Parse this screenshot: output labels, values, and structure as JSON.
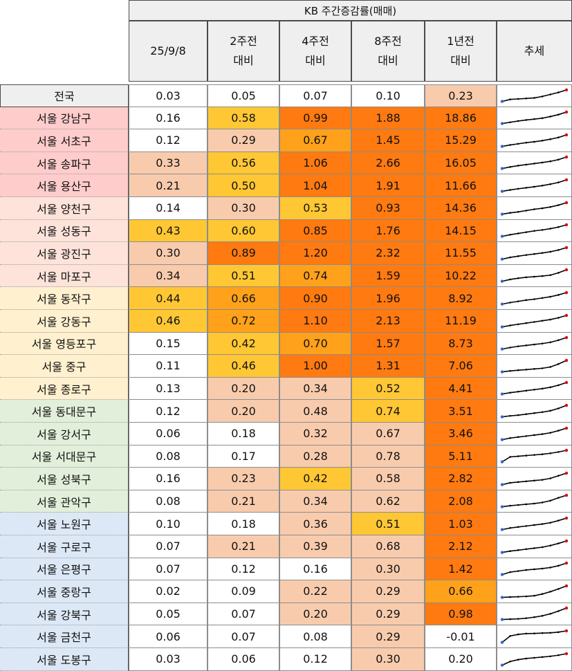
{
  "header": {
    "title": "KB 주간증감률(매매)",
    "columns": [
      {
        "line1": "25/9/8",
        "line2": ""
      },
      {
        "line1": "2주전",
        "line2": "대비"
      },
      {
        "line1": "4주전",
        "line2": "대비"
      },
      {
        "line1": "8주전",
        "line2": "대비"
      },
      {
        "line1": "1년전",
        "line2": "대비"
      },
      {
        "line1": "추세",
        "line2": ""
      }
    ]
  },
  "colors": {
    "heat_white": "#ffffff",
    "heat_light": "#f8cbad",
    "heat_yellow": "#ffc734",
    "heat_orange_light": "#ffa11a",
    "heat_orange": "#ff7a10",
    "group_national": "#efefef",
    "group_red": "#ffcccc",
    "group_peach": "#fde3da",
    "group_cream": "#fff1cf",
    "group_green": "#e2efda",
    "group_blue": "#dce8f6",
    "sparkline": "#000000",
    "spark_start": "#3366cc",
    "spark_end": "#e60000"
  },
  "rows": [
    {
      "region": "전국",
      "group": "national",
      "values": [
        "0.03",
        "0.05",
        "0.07",
        "0.10",
        "0.23"
      ],
      "heat": [
        "white",
        "white",
        "white",
        "white",
        "light"
      ],
      "trend": [
        0.0,
        0.04,
        0.05,
        0.06,
        0.07,
        0.1,
        0.14,
        0.18,
        0.23
      ]
    },
    {
      "region": "서울 강남구",
      "group": "red",
      "values": [
        "0.16",
        "0.58",
        "0.99",
        "1.88",
        "18.86"
      ],
      "heat": [
        "white",
        "yellow",
        "orange",
        "orange",
        "orange"
      ],
      "trend": [
        0.0,
        0.1,
        0.2,
        0.28,
        0.35,
        0.42,
        0.55,
        0.7,
        0.9
      ]
    },
    {
      "region": "서울 서초구",
      "group": "red",
      "values": [
        "0.12",
        "0.29",
        "0.67",
        "1.45",
        "15.29"
      ],
      "heat": [
        "white",
        "light",
        "orange_light",
        "orange",
        "orange"
      ],
      "trend": [
        0.0,
        0.1,
        0.18,
        0.26,
        0.32,
        0.4,
        0.5,
        0.62,
        0.8
      ]
    },
    {
      "region": "서울 송파구",
      "group": "red",
      "values": [
        "0.33",
        "0.56",
        "1.06",
        "2.66",
        "16.05"
      ],
      "heat": [
        "light",
        "yellow",
        "orange",
        "orange",
        "orange"
      ],
      "trend": [
        0.0,
        0.12,
        0.22,
        0.3,
        0.38,
        0.46,
        0.55,
        0.68,
        0.88
      ]
    },
    {
      "region": "서울 용산구",
      "group": "red",
      "values": [
        "0.21",
        "0.50",
        "1.04",
        "1.91",
        "11.66"
      ],
      "heat": [
        "light",
        "yellow",
        "orange",
        "orange",
        "orange"
      ],
      "trend": [
        0.0,
        0.1,
        0.18,
        0.25,
        0.32,
        0.4,
        0.5,
        0.62,
        0.8
      ]
    },
    {
      "region": "서울 양천구",
      "group": "peach",
      "values": [
        "0.14",
        "0.30",
        "0.53",
        "0.93",
        "14.36"
      ],
      "heat": [
        "white",
        "light",
        "yellow",
        "orange",
        "orange"
      ],
      "trend": [
        0.0,
        0.08,
        0.14,
        0.22,
        0.3,
        0.36,
        0.44,
        0.55,
        0.7
      ]
    },
    {
      "region": "서울 성동구",
      "group": "peach",
      "values": [
        "0.43",
        "0.60",
        "0.85",
        "1.76",
        "14.15"
      ],
      "heat": [
        "yellow",
        "yellow",
        "orange",
        "orange",
        "orange"
      ],
      "trend": [
        0.0,
        0.1,
        0.18,
        0.26,
        0.34,
        0.4,
        0.48,
        0.58,
        0.72
      ]
    },
    {
      "region": "서울 광진구",
      "group": "peach",
      "values": [
        "0.30",
        "0.89",
        "1.20",
        "2.32",
        "11.55"
      ],
      "heat": [
        "light",
        "orange",
        "orange",
        "orange",
        "orange"
      ],
      "trend": [
        0.0,
        0.12,
        0.2,
        0.28,
        0.35,
        0.42,
        0.5,
        0.62,
        0.78
      ]
    },
    {
      "region": "서울 마포구",
      "group": "peach",
      "values": [
        "0.34",
        "0.51",
        "0.74",
        "1.59",
        "10.22"
      ],
      "heat": [
        "light",
        "yellow",
        "orange_light",
        "orange",
        "orange"
      ],
      "trend": [
        0.0,
        0.12,
        0.2,
        0.26,
        0.3,
        0.34,
        0.4,
        0.55,
        0.75
      ]
    },
    {
      "region": "서울 동작구",
      "group": "cream",
      "values": [
        "0.44",
        "0.66",
        "0.90",
        "1.96",
        "8.92"
      ],
      "heat": [
        "yellow",
        "orange_light",
        "orange",
        "orange",
        "orange"
      ],
      "trend": [
        0.0,
        0.1,
        0.18,
        0.26,
        0.32,
        0.4,
        0.48,
        0.6,
        0.75
      ]
    },
    {
      "region": "서울 강동구",
      "group": "cream",
      "values": [
        "0.46",
        "0.72",
        "1.10",
        "2.13",
        "11.19"
      ],
      "heat": [
        "yellow",
        "orange_light",
        "orange",
        "orange",
        "orange"
      ],
      "trend": [
        0.0,
        0.1,
        0.18,
        0.26,
        0.34,
        0.42,
        0.5,
        0.62,
        0.78
      ]
    },
    {
      "region": "서울 영등포구",
      "group": "cream",
      "values": [
        "0.15",
        "0.42",
        "0.70",
        "1.57",
        "8.73"
      ],
      "heat": [
        "white",
        "yellow",
        "orange_light",
        "orange",
        "orange"
      ],
      "trend": [
        0.0,
        0.1,
        0.18,
        0.24,
        0.3,
        0.36,
        0.44,
        0.58,
        0.75
      ]
    },
    {
      "region": "서울 중구",
      "group": "cream",
      "values": [
        "0.11",
        "0.46",
        "1.00",
        "1.31",
        "7.06"
      ],
      "heat": [
        "white",
        "yellow",
        "orange",
        "orange",
        "orange"
      ],
      "trend": [
        0.0,
        0.06,
        0.1,
        0.14,
        0.18,
        0.22,
        0.3,
        0.48,
        0.7
      ]
    },
    {
      "region": "서울 종로구",
      "group": "cream",
      "values": [
        "0.13",
        "0.20",
        "0.34",
        "0.52",
        "4.41"
      ],
      "heat": [
        "white",
        "light",
        "light",
        "yellow",
        "orange"
      ],
      "trend": [
        0.0,
        0.08,
        0.14,
        0.2,
        0.26,
        0.32,
        0.4,
        0.52,
        0.68
      ]
    },
    {
      "region": "서울 동대문구",
      "group": "green",
      "values": [
        "0.12",
        "0.20",
        "0.48",
        "0.74",
        "3.51"
      ],
      "heat": [
        "white",
        "light",
        "light",
        "yellow",
        "orange"
      ],
      "trend": [
        0.0,
        0.06,
        0.1,
        0.16,
        0.22,
        0.28,
        0.36,
        0.5,
        0.68
      ]
    },
    {
      "region": "서울 강서구",
      "group": "green",
      "values": [
        "0.06",
        "0.18",
        "0.32",
        "0.67",
        "3.46"
      ],
      "heat": [
        "white",
        "white",
        "light",
        "light",
        "orange"
      ],
      "trend": [
        0.0,
        0.1,
        0.16,
        0.22,
        0.28,
        0.34,
        0.42,
        0.55,
        0.7
      ]
    },
    {
      "region": "서울 서대문구",
      "group": "green",
      "values": [
        "0.08",
        "0.17",
        "0.28",
        "0.78",
        "5.11"
      ],
      "heat": [
        "white",
        "white",
        "light",
        "light",
        "orange"
      ],
      "trend": [
        0.0,
        0.3,
        0.34,
        0.38,
        0.42,
        0.46,
        0.52,
        0.6,
        0.7
      ]
    },
    {
      "region": "서울 성북구",
      "group": "green",
      "values": [
        "0.16",
        "0.23",
        "0.42",
        "0.58",
        "2.82"
      ],
      "heat": [
        "white",
        "light",
        "yellow",
        "light",
        "orange"
      ],
      "trend": [
        0.0,
        0.1,
        0.14,
        0.18,
        0.22,
        0.26,
        0.34,
        0.48,
        0.62
      ]
    },
    {
      "region": "서울 관악구",
      "group": "green",
      "values": [
        "0.08",
        "0.21",
        "0.34",
        "0.62",
        "2.08"
      ],
      "heat": [
        "white",
        "light",
        "light",
        "light",
        "orange"
      ],
      "trend": [
        0.0,
        0.06,
        0.1,
        0.14,
        0.18,
        0.24,
        0.34,
        0.5,
        0.64
      ]
    },
    {
      "region": "서울 노원구",
      "group": "blue",
      "values": [
        "0.10",
        "0.18",
        "0.36",
        "0.51",
        "1.03"
      ],
      "heat": [
        "white",
        "white",
        "light",
        "yellow",
        "orange"
      ],
      "trend": [
        0.0,
        0.1,
        0.16,
        0.22,
        0.28,
        0.34,
        0.42,
        0.55,
        0.7
      ]
    },
    {
      "region": "서울 구로구",
      "group": "blue",
      "values": [
        "0.07",
        "0.21",
        "0.39",
        "0.68",
        "2.12"
      ],
      "heat": [
        "white",
        "light",
        "light",
        "light",
        "orange"
      ],
      "trend": [
        0.0,
        0.08,
        0.14,
        0.2,
        0.26,
        0.32,
        0.42,
        0.55,
        0.7
      ]
    },
    {
      "region": "서울 은평구",
      "group": "blue",
      "values": [
        "0.07",
        "0.12",
        "0.16",
        "0.30",
        "1.42"
      ],
      "heat": [
        "white",
        "white",
        "white",
        "light",
        "orange"
      ],
      "trend": [
        0.0,
        0.14,
        0.2,
        0.26,
        0.3,
        0.34,
        0.4,
        0.5,
        0.65
      ]
    },
    {
      "region": "서울 중랑구",
      "group": "blue",
      "values": [
        "0.02",
        "0.09",
        "0.22",
        "0.29",
        "0.66"
      ],
      "heat": [
        "white",
        "white",
        "light",
        "light",
        "orange_light"
      ],
      "trend": [
        0.0,
        0.02,
        0.04,
        0.06,
        0.1,
        0.2,
        0.34,
        0.5,
        0.68
      ]
    },
    {
      "region": "서울 강북구",
      "group": "blue",
      "values": [
        "0.05",
        "0.07",
        "0.20",
        "0.29",
        "0.98"
      ],
      "heat": [
        "white",
        "white",
        "light",
        "light",
        "orange"
      ],
      "trend": [
        0.0,
        0.02,
        0.04,
        0.08,
        0.14,
        0.22,
        0.34,
        0.5,
        0.68
      ]
    },
    {
      "region": "서울 금천구",
      "group": "blue",
      "values": [
        "0.06",
        "0.07",
        "0.08",
        "0.29",
        "-0.01"
      ],
      "heat": [
        "white",
        "white",
        "white",
        "light",
        "white"
      ],
      "trend": [
        0.0,
        0.4,
        0.5,
        0.55,
        0.56,
        0.58,
        0.6,
        0.64,
        0.72
      ]
    },
    {
      "region": "서울 도봉구",
      "group": "blue",
      "values": [
        "0.03",
        "0.06",
        "0.12",
        "0.30",
        "0.20"
      ],
      "heat": [
        "white",
        "white",
        "white",
        "light",
        "white"
      ],
      "trend": [
        0.0,
        0.2,
        0.3,
        0.36,
        0.4,
        0.44,
        0.48,
        0.54,
        0.62
      ]
    }
  ]
}
